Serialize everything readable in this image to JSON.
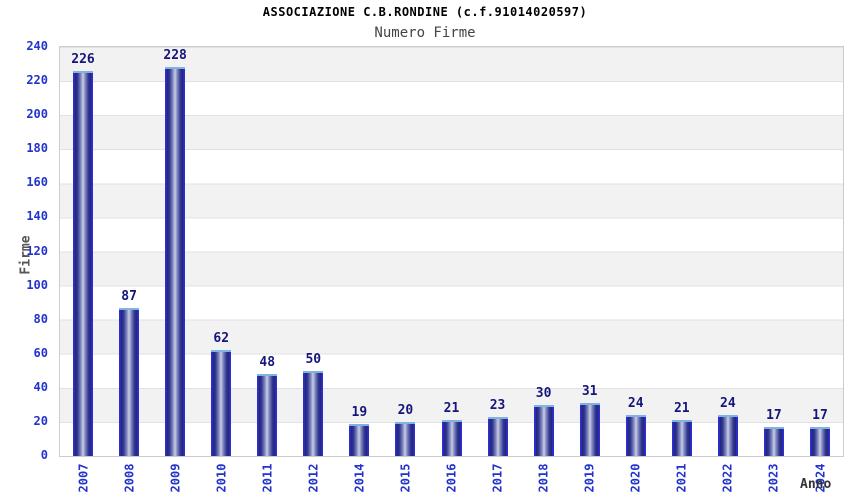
{
  "header": {
    "title": "ASSOCIAZIONE C.B.RONDINE (c.f.91014020597)",
    "subtitle": "Numero Firme"
  },
  "chart_data": {
    "type": "bar",
    "title": "ASSOCIAZIONE C.B.RONDINE (c.f.91014020597)",
    "subtitle": "Numero Firme",
    "categories": [
      "2007",
      "2008",
      "2009",
      "2010",
      "2011",
      "2012",
      "2014",
      "2015",
      "2016",
      "2017",
      "2018",
      "2019",
      "2020",
      "2021",
      "2022",
      "2023",
      "2024"
    ],
    "values": [
      226,
      87,
      228,
      62,
      48,
      50,
      19,
      20,
      21,
      23,
      30,
      31,
      24,
      21,
      24,
      17,
      17
    ],
    "xlabel": "Anno",
    "ylabel": "Firme",
    "ylim": [
      0,
      240
    ],
    "ytick_step": 20,
    "yticks": [
      0,
      20,
      40,
      60,
      80,
      100,
      120,
      140,
      160,
      180,
      200,
      220,
      240
    ],
    "grid": "horizontal-alternating-bands",
    "legend_position": "none",
    "bar_value_labels_shown": true,
    "colors": {
      "bar_edge_blue": "#2d2dd0",
      "bar_dark_navy": "#23277b",
      "bar_mid": "#7b82bb",
      "bar_light_center": "#c9cde4",
      "bar_top_cap": "#7fb3e4",
      "tick_label": "#2233cc",
      "value_label": "#15157b",
      "band_gray": "#f2f2f2",
      "band_white": "#ffffff",
      "gridline": "#e2e2e2",
      "plot_border": "#cccccc"
    }
  }
}
